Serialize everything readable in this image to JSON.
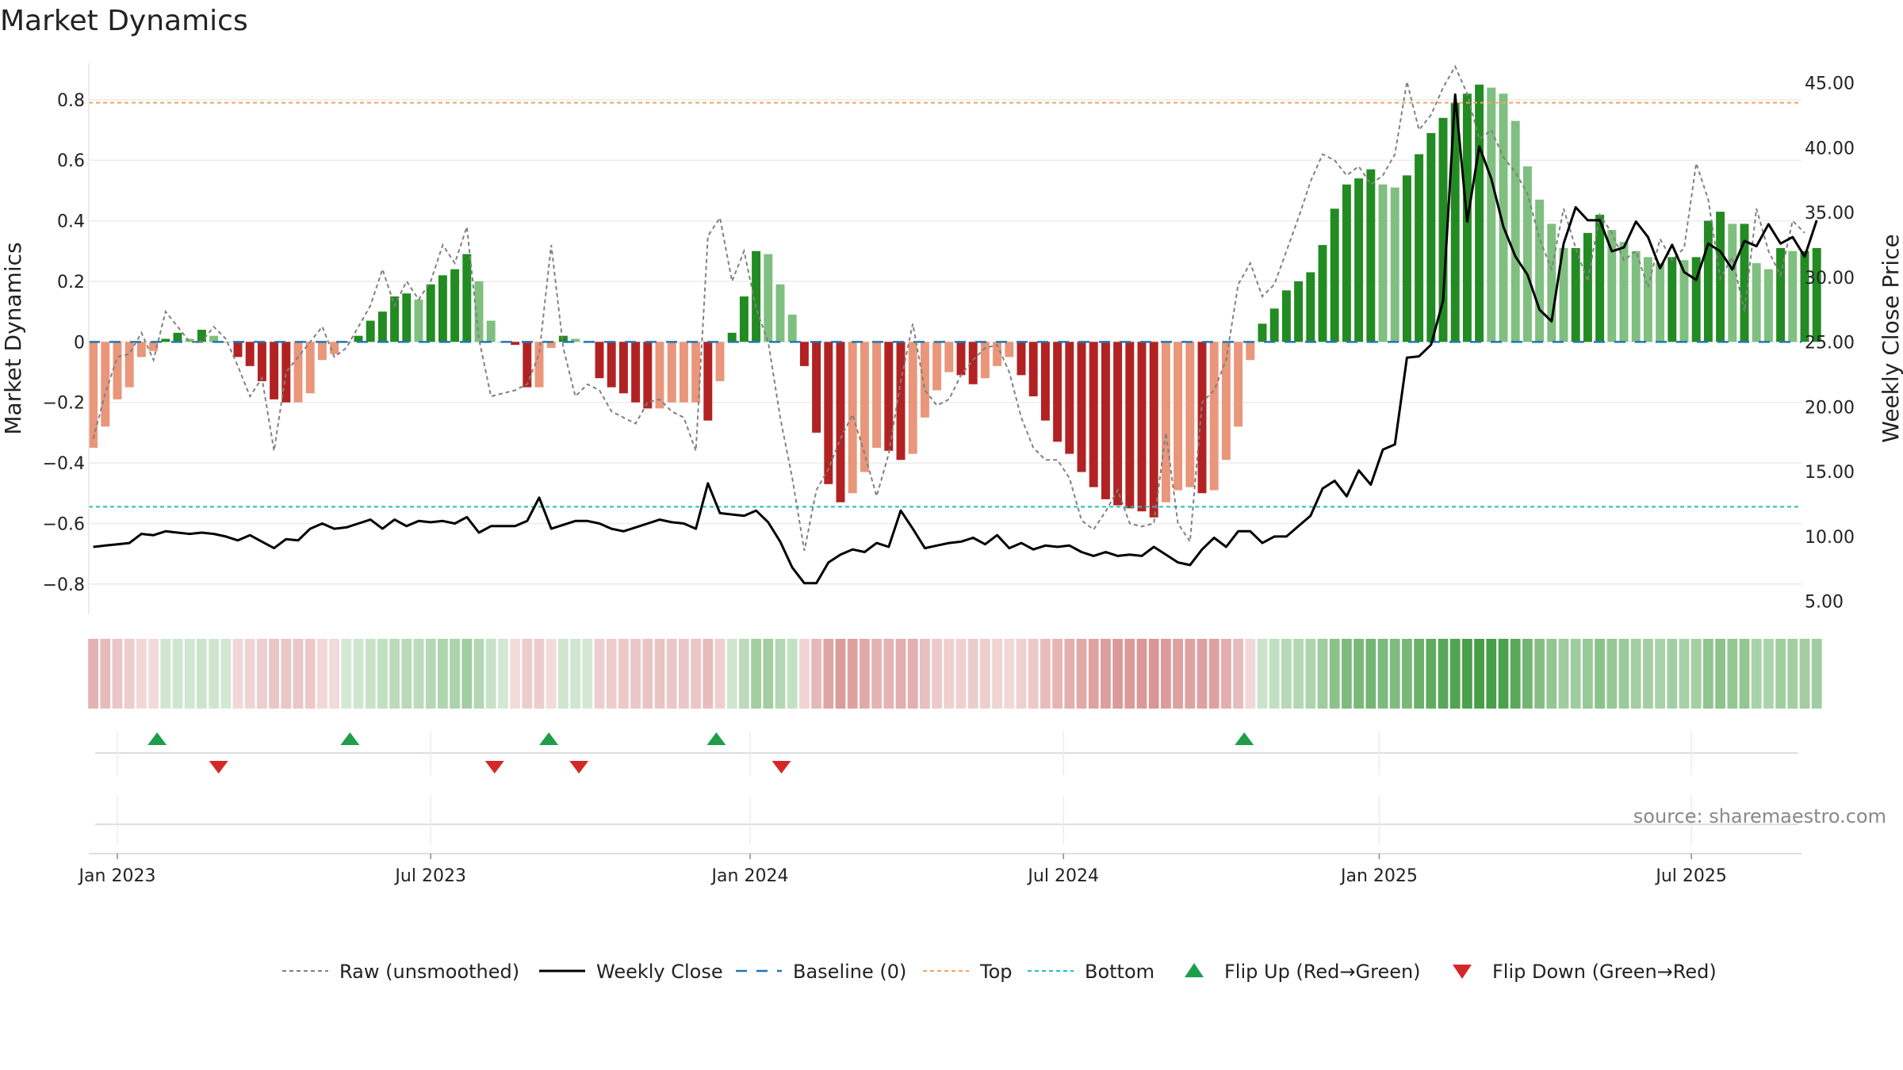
{
  "chart_data": {
    "type": "bar",
    "title": "Market Dynamics",
    "ylabel_left": "Market Dynamics",
    "ylabel_right": "Weekly Close Price",
    "ylim_left": [
      -0.9,
      0.92
    ],
    "ylim_right": [
      4,
      46.5
    ],
    "left_ticks": [
      "−0.8",
      "−0.6",
      "−0.4",
      "−0.2",
      "0",
      "0.2",
      "0.4",
      "0.6",
      "0.8"
    ],
    "left_tick_values": [
      -0.8,
      -0.6,
      -0.4,
      -0.2,
      0,
      0.2,
      0.4,
      0.6,
      0.8
    ],
    "right_ticks": [
      "5.00",
      "10.00",
      "15.00",
      "20.00",
      "25.00",
      "30.00",
      "35.00",
      "40.00",
      "45.00"
    ],
    "right_tick_values": [
      5,
      10,
      15,
      20,
      25,
      30,
      35,
      40,
      45
    ],
    "x_ticks": [
      "Jan 2023",
      "Jul 2023",
      "Jan 2024",
      "Jul 2024",
      "Jan 2025",
      "Jul 2025"
    ],
    "x_tick_weeks": [
      0,
      26,
      52.5,
      78.5,
      104.7,
      130.6
    ],
    "baseline": 0,
    "top": 0.79,
    "bottom": -0.545,
    "grid": true,
    "legend_position": "bottom-center",
    "source": "source: sharemaestro.com",
    "legend": {
      "raw": "Raw (unsmoothed)",
      "close": "Weekly Close",
      "baseline": "Baseline (0)",
      "top": "Top",
      "bottom": "Bottom",
      "flip_up": "Flip Up (Red→Green)",
      "flip_down": "Flip Down (Green→Red)"
    },
    "colors": {
      "strong_green": "#228b22",
      "light_green": "#7fbf7f",
      "strong_red": "#b22222",
      "light_red": "#e9967a",
      "raw": "#808080",
      "close": "#000000",
      "baseline": "#1f77b4",
      "top": "#f4a460",
      "bottom": "#20c0c0",
      "flip_up": "#1e9e4a",
      "flip_down": "#d62728"
    },
    "series": [
      {
        "name": "Market Dynamics",
        "week_start": -2,
        "values": [
          -0.35,
          -0.28,
          -0.19,
          -0.15,
          -0.05,
          -0.03,
          0.01,
          0.03,
          0.01,
          0.04,
          0.02,
          0.0,
          -0.05,
          -0.08,
          -0.13,
          -0.19,
          -0.2,
          -0.2,
          -0.17,
          -0.06,
          -0.04,
          0.0,
          0.02,
          0.07,
          0.1,
          0.15,
          0.16,
          0.14,
          0.19,
          0.22,
          0.24,
          0.29,
          0.2,
          0.07,
          0.0,
          -0.01,
          -0.15,
          -0.15,
          -0.02,
          0.02,
          0.01,
          0.0,
          -0.12,
          -0.15,
          -0.17,
          -0.2,
          -0.22,
          -0.22,
          -0.2,
          -0.2,
          -0.2,
          -0.26,
          -0.13,
          0.03,
          0.15,
          0.3,
          0.29,
          0.19,
          0.09,
          -0.08,
          -0.3,
          -0.47,
          -0.53,
          -0.5,
          -0.43,
          -0.35,
          -0.36,
          -0.39,
          -0.37,
          -0.25,
          -0.16,
          -0.1,
          -0.11,
          -0.14,
          -0.12,
          -0.08,
          -0.05,
          -0.11,
          -0.18,
          -0.26,
          -0.33,
          -0.37,
          -0.43,
          -0.48,
          -0.52,
          -0.54,
          -0.55,
          -0.56,
          -0.58,
          -0.53,
          -0.49,
          -0.48,
          -0.5,
          -0.49,
          -0.39,
          -0.28,
          -0.06,
          0.06,
          0.11,
          0.17,
          0.2,
          0.23,
          0.32,
          0.44,
          0.52,
          0.54,
          0.57,
          0.52,
          0.51,
          0.55,
          0.62,
          0.69,
          0.74,
          0.79,
          0.82,
          0.85,
          0.84,
          0.82,
          0.73,
          0.58,
          0.47,
          0.39,
          0.31,
          0.31,
          0.36,
          0.42,
          0.37,
          0.33,
          0.3,
          0.28,
          0.26,
          0.28,
          0.27,
          0.28,
          0.4,
          0.43,
          0.39,
          0.39,
          0.26,
          0.24,
          0.31,
          0.3,
          0.3,
          0.31
        ]
      },
      {
        "name": "Raw (unsmoothed)",
        "week_start": -2,
        "values": [
          -0.32,
          -0.17,
          -0.05,
          -0.04,
          0.03,
          -0.06,
          0.1,
          0.05,
          0.0,
          0.0,
          0.05,
          0.01,
          -0.08,
          -0.18,
          -0.12,
          -0.36,
          -0.1,
          -0.05,
          0.0,
          0.05,
          -0.05,
          -0.02,
          0.05,
          0.12,
          0.24,
          0.12,
          0.2,
          0.14,
          0.2,
          0.32,
          0.26,
          0.38,
          0.01,
          -0.18,
          -0.17,
          -0.16,
          -0.14,
          -0.04,
          0.32,
          -0.02,
          -0.18,
          -0.14,
          -0.16,
          -0.23,
          -0.25,
          -0.27,
          -0.2,
          -0.19,
          -0.23,
          -0.25,
          -0.36,
          0.35,
          0.41,
          0.2,
          0.3,
          0.11,
          0.0,
          -0.25,
          -0.45,
          -0.69,
          -0.49,
          -0.42,
          -0.32,
          -0.24,
          -0.37,
          -0.51,
          -0.37,
          -0.13,
          0.06,
          -0.16,
          -0.21,
          -0.19,
          -0.11,
          -0.06,
          -0.02,
          -0.01,
          -0.1,
          -0.25,
          -0.35,
          -0.39,
          -0.39,
          -0.45,
          -0.59,
          -0.62,
          -0.56,
          -0.49,
          -0.6,
          -0.61,
          -0.6,
          -0.3,
          -0.6,
          -0.66,
          -0.2,
          -0.16,
          -0.06,
          0.19,
          0.26,
          0.15,
          0.19,
          0.3,
          0.41,
          0.53,
          0.62,
          0.6,
          0.55,
          0.58,
          0.52,
          0.55,
          0.62,
          0.86,
          0.7,
          0.75,
          0.84,
          0.91,
          0.82,
          0.67,
          0.7,
          0.61,
          0.56,
          0.49,
          0.34,
          0.24,
          0.44,
          0.31,
          0.2,
          0.42,
          0.36,
          0.27,
          0.3,
          0.18,
          0.34,
          0.27,
          0.31,
          0.59,
          0.47,
          0.21,
          0.28,
          0.1,
          0.44,
          0.3,
          0.22,
          0.4,
          0.36
        ]
      },
      {
        "name": "Weekly Close",
        "week_start": -2,
        "values": [
          9.2,
          9.3,
          9.4,
          9.5,
          10.2,
          10.1,
          10.4,
          10.3,
          10.2,
          10.3,
          10.2,
          10.0,
          9.7,
          10.1,
          9.6,
          9.1,
          9.8,
          9.7,
          10.6,
          11.0,
          10.6,
          10.7,
          11.0,
          11.3,
          10.6,
          11.3,
          10.8,
          11.2,
          11.1,
          11.2,
          11.0,
          11.5,
          10.3,
          10.8,
          10.8,
          10.8,
          11.2,
          13.0,
          10.6,
          10.9,
          11.2,
          11.2,
          11.0,
          10.6,
          10.4,
          10.7,
          11.0,
          11.3,
          11.1,
          11.0,
          10.6,
          14.1,
          11.8,
          11.7,
          11.6,
          12.0,
          11.1,
          9.6,
          7.6,
          6.4,
          6.4,
          8.0,
          8.6,
          9.0,
          8.8,
          9.5,
          9.2,
          12.0,
          10.6,
          9.1,
          9.3,
          9.5,
          9.6,
          9.9,
          9.4,
          10.1,
          9.1,
          9.5,
          9.0,
          9.3,
          9.2,
          9.3,
          8.8,
          8.5,
          8.8,
          8.5,
          8.6,
          8.5,
          9.2,
          8.6,
          8.0,
          7.8,
          9.0,
          9.9,
          9.2,
          10.4,
          10.4,
          9.5,
          10.0,
          10.0,
          10.8,
          11.6,
          13.7,
          14.3,
          13.1,
          15.1,
          14.0,
          16.7,
          17.1,
          23.8,
          23.9,
          24.8,
          28.2,
          44.1,
          34.3,
          40.1,
          37.6,
          33.9,
          31.6,
          30.2,
          27.5,
          26.6,
          32.6,
          35.4,
          34.4,
          34.4,
          32.0,
          32.3,
          34.3,
          33.1,
          30.7,
          32.5,
          30.4,
          29.8,
          32.6,
          32.0,
          30.6,
          32.8,
          32.4,
          34.1,
          32.6,
          33.1,
          31.6,
          34.4
        ]
      }
    ],
    "flip_up_weeks": [
      3.3,
      19.3,
      35.8,
      49.7,
      93.5
    ],
    "flip_down_weeks": [
      8.4,
      31.3,
      38.3,
      55.1
    ],
    "strip_weeks_start": -2,
    "strip_weeks_end": 141
  }
}
